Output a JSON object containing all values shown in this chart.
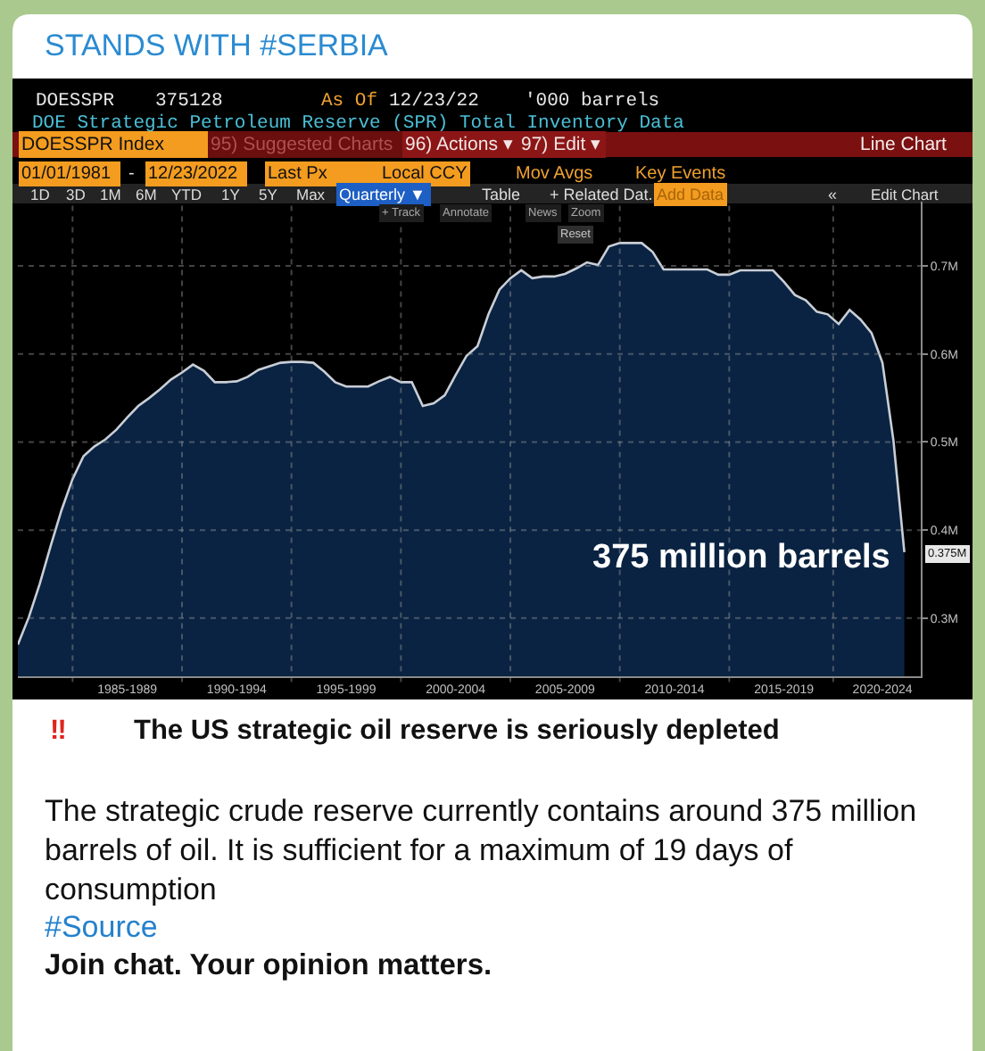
{
  "chart_data": {
    "type": "area",
    "title": "DOE Strategic Petroleum Reserve (SPR) Total Inventory Data",
    "categories": [
      null,
      null,
      null,
      null,
      null,
      null,
      null,
      null,
      null,
      null,
      "1985-1989",
      null,
      null,
      null,
      null,
      null,
      null,
      null,
      null,
      null,
      "1990-1994",
      null,
      null,
      null,
      null,
      null,
      null,
      null,
      null,
      null,
      "1995-1999",
      null,
      null,
      null,
      null,
      null,
      null,
      null,
      null,
      null,
      "2000-2004",
      null,
      null,
      null,
      null,
      null,
      null,
      null,
      null,
      null,
      "2005-2009",
      null,
      null,
      null,
      null,
      null,
      null,
      null,
      null,
      null,
      "2010-2014",
      null,
      null,
      null,
      null,
      null,
      null,
      null,
      null,
      null,
      "2015-2019",
      null,
      null,
      null,
      null,
      null,
      null,
      null,
      null,
      "2020-2024",
      null,
      null,
      null
    ],
    "values": [
      0.27,
      0.301,
      0.339,
      0.382,
      0.423,
      0.458,
      0.484,
      0.495,
      0.503,
      0.514,
      0.528,
      0.541,
      0.55,
      0.56,
      0.571,
      0.579,
      0.588,
      0.581,
      0.568,
      0.568,
      0.569,
      0.574,
      0.582,
      0.586,
      0.59,
      0.591,
      0.591,
      0.59,
      0.58,
      0.568,
      0.563,
      0.563,
      0.563,
      0.569,
      0.574,
      0.568,
      0.568,
      0.541,
      0.544,
      0.553,
      0.576,
      0.598,
      0.609,
      0.645,
      0.673,
      0.686,
      0.695,
      0.686,
      0.688,
      0.688,
      0.691,
      0.697,
      0.704,
      0.701,
      0.722,
      0.726,
      0.726,
      0.726,
      0.716,
      0.696,
      0.696,
      0.696,
      0.696,
      0.696,
      0.69,
      0.69,
      0.695,
      0.695,
      0.695,
      0.695,
      0.682,
      0.667,
      0.661,
      0.648,
      0.645,
      0.634,
      0.65,
      0.639,
      0.624,
      0.59,
      0.502,
      0.375,
      null
    ],
    "color": "#0a2342",
    "ylim": [
      0.234,
      0.773
    ],
    "yticks": [
      {
        "value": 0.3,
        "label": "0.3M"
      },
      {
        "value": 0.4,
        "label": "0.4M"
      },
      {
        "value": 0.5,
        "label": "0.5M"
      },
      {
        "value": 0.6,
        "label": "0.6M"
      },
      {
        "value": 0.7,
        "label": "0.7M"
      }
    ],
    "grid": true,
    "annotations": [
      "STANDS WITH #SERBIA",
      "DOESSPR",
      "375128",
      "As Of",
      "12/23/22",
      "'000 barrels",
      "DOESSPR Index",
      "95) Suggested Charts",
      "96) Actions ▾",
      "97) Edit ▾",
      "Line Chart",
      "01/01/1981",
      "-",
      "12/23/2022",
      "Last Px",
      "Local CCY",
      "Mov Avgs",
      "Key Events",
      "1D",
      "3D",
      "1M",
      "6M",
      "YTD",
      "1Y",
      "5Y",
      "Max",
      "Quarterly ▼",
      "Table",
      "+ Related Dat.",
      "Add Data",
      "«",
      "Edit Chart",
      "+ Track",
      "Annotate",
      "News",
      "Zoom",
      "Reset",
      "375 million barrels",
      "0.375M",
      "‼",
      "The US strategic oil reserve is seriously depleted",
      "The strategic crude reserve currently contains around 375 million barrels of oil. It is sufficient for a maximum of 19 days of consumption",
      "#Source",
      "Join chat. Your opinion matters."
    ]
  }
}
